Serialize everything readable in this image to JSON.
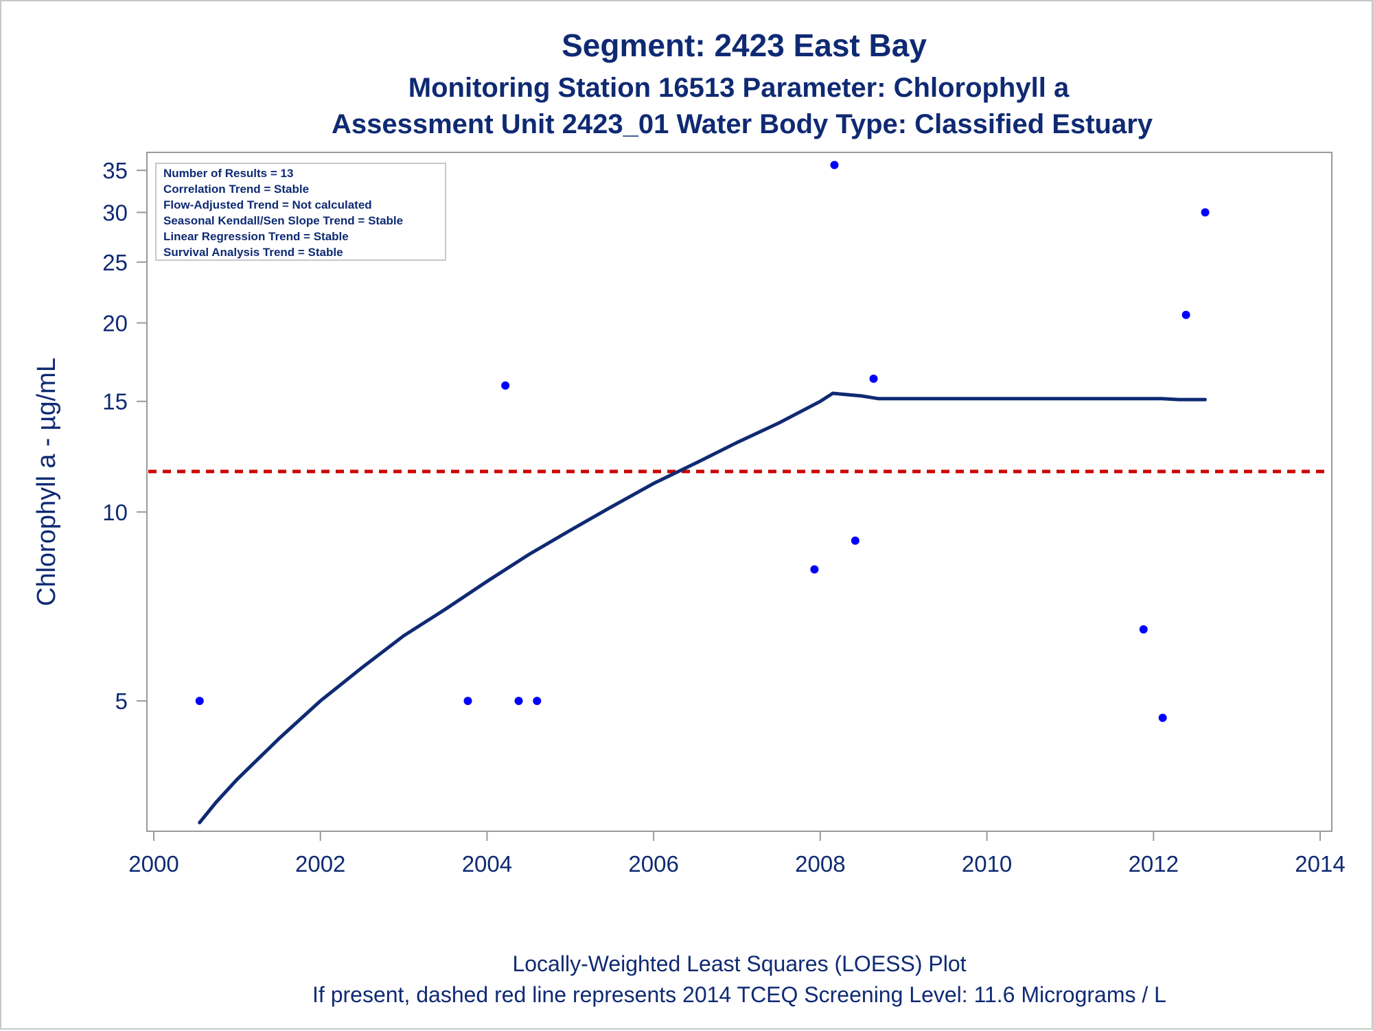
{
  "chart_data": {
    "type": "scatter",
    "title": "Segment: 2423  East Bay",
    "subtitle_1": "Monitoring Station 16513 Parameter: Chlorophyll a",
    "subtitle_2": "Assessment Unit 2423_01   Water Body Type: Classified Estuary",
    "xlabel": "",
    "ylabel": "Chlorophyll a -  µg/mL",
    "x_ticks": [
      "2000",
      "2002",
      "2004",
      "2006",
      "2008",
      "2010",
      "2012",
      "2014"
    ],
    "y_ticks": [
      "5",
      "10",
      "15",
      "20",
      "25",
      "30",
      "35"
    ],
    "x_range": [
      2000,
      2014
    ],
    "y_range": [
      3.1,
      36
    ],
    "y_scale": "log",
    "grid": false,
    "info_box": {
      "position": "top-left",
      "lines": [
        "Number of Results = 13",
        "Correlation Trend = Stable",
        "Flow-Adjusted Trend = Not calculated",
        "Seasonal Kendall/Sen Slope Trend = Stable",
        "Linear Regression Trend = Stable",
        "Survival Analysis Trend = Stable"
      ]
    },
    "series": [
      {
        "kind": "points",
        "color": "#0000ff",
        "points": [
          {
            "x": 2000.55,
            "y": 5.0
          },
          {
            "x": 2003.77,
            "y": 5.0
          },
          {
            "x": 2004.22,
            "y": 15.9
          },
          {
            "x": 2004.38,
            "y": 5.0
          },
          {
            "x": 2004.6,
            "y": 5.0
          },
          {
            "x": 2007.93,
            "y": 8.1
          },
          {
            "x": 2008.17,
            "y": 35.7
          },
          {
            "x": 2008.42,
            "y": 9.0
          },
          {
            "x": 2008.64,
            "y": 16.3
          },
          {
            "x": 2011.88,
            "y": 6.5
          },
          {
            "x": 2012.11,
            "y": 4.7
          },
          {
            "x": 2012.39,
            "y": 20.6
          },
          {
            "x": 2012.62,
            "y": 30.0
          }
        ]
      },
      {
        "kind": "loess-line",
        "color": "#0f2a73",
        "points": [
          {
            "x": 2000.55,
            "y": 3.2
          },
          {
            "x": 2000.75,
            "y": 3.45
          },
          {
            "x": 2001.0,
            "y": 3.75
          },
          {
            "x": 2001.5,
            "y": 4.35
          },
          {
            "x": 2002.0,
            "y": 5.0
          },
          {
            "x": 2002.5,
            "y": 5.65
          },
          {
            "x": 2003.0,
            "y": 6.35
          },
          {
            "x": 2003.5,
            "y": 7.0
          },
          {
            "x": 2004.0,
            "y": 7.75
          },
          {
            "x": 2004.5,
            "y": 8.55
          },
          {
            "x": 2005.0,
            "y": 9.35
          },
          {
            "x": 2005.5,
            "y": 10.2
          },
          {
            "x": 2006.0,
            "y": 11.1
          },
          {
            "x": 2006.5,
            "y": 11.95
          },
          {
            "x": 2007.0,
            "y": 12.9
          },
          {
            "x": 2007.5,
            "y": 13.85
          },
          {
            "x": 2008.0,
            "y": 15.0
          },
          {
            "x": 2008.15,
            "y": 15.45
          },
          {
            "x": 2008.5,
            "y": 15.3
          },
          {
            "x": 2008.7,
            "y": 15.15
          },
          {
            "x": 2009.0,
            "y": 15.15
          },
          {
            "x": 2010.0,
            "y": 15.15
          },
          {
            "x": 2011.0,
            "y": 15.15
          },
          {
            "x": 2012.1,
            "y": 15.15
          },
          {
            "x": 2012.3,
            "y": 15.1
          },
          {
            "x": 2012.62,
            "y": 15.1
          }
        ]
      }
    ],
    "reference_line": {
      "y": 11.6,
      "color": "#cc0000",
      "style": "dashed"
    },
    "footnote_1": "Locally-Weighted Least Squares (LOESS) Plot",
    "footnote_2": "If present, dashed red line represents 2014 TCEQ Screening Level: 11.6 Micrograms / L"
  }
}
